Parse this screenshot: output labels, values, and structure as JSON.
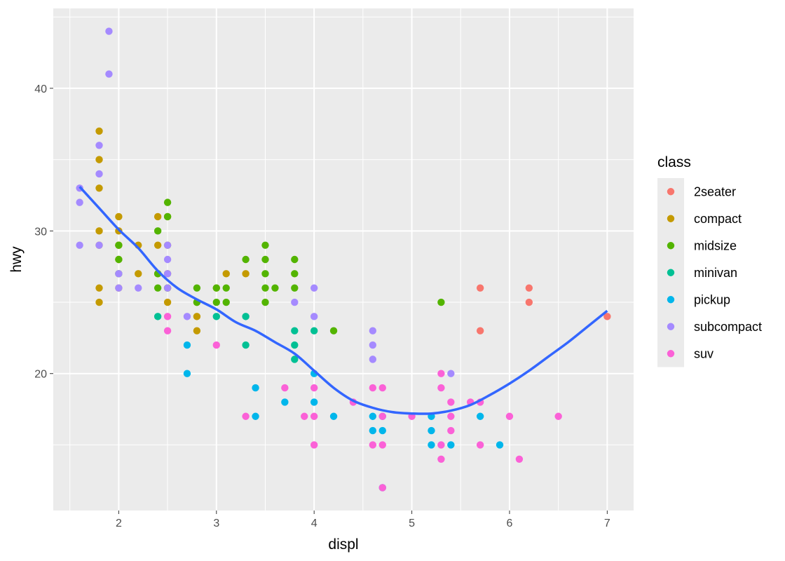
{
  "chart_data": {
    "type": "scatter",
    "xlabel": "displ",
    "ylabel": "hwy",
    "xlim": [
      1.33,
      7.27
    ],
    "ylim": [
      10.4,
      45.6
    ],
    "x_ticks": [
      2,
      3,
      4,
      5,
      6,
      7
    ],
    "y_ticks": [
      20,
      30,
      40
    ],
    "x_tick_labels": [
      "2",
      "3",
      "4",
      "5",
      "6",
      "7"
    ],
    "y_tick_labels": [
      "20",
      "30",
      "40"
    ],
    "grid": true,
    "legend": {
      "title": "class",
      "position": "right",
      "entries": [
        "2seater",
        "compact",
        "midsize",
        "minivan",
        "pickup",
        "subcompact",
        "suv"
      ]
    },
    "colors": {
      "2seater": "#F8766D",
      "compact": "#C49A00",
      "midsize": "#53B400",
      "minivan": "#00C094",
      "pickup": "#00B6EB",
      "subcompact": "#A58AFF",
      "suv": "#FB61D7",
      "smooth": "#3366FF",
      "panel": "#EBEBEB",
      "grid": "#FFFFFF"
    },
    "series": [
      {
        "name": "2seater",
        "points": [
          [
            5.7,
            26
          ],
          [
            5.7,
            23
          ],
          [
            6.2,
            26
          ],
          [
            6.2,
            25
          ],
          [
            7.0,
            24
          ]
        ]
      },
      {
        "name": "compact",
        "points": [
          [
            1.8,
            37
          ],
          [
            1.8,
            35
          ],
          [
            1.8,
            33
          ],
          [
            1.8,
            30
          ],
          [
            1.8,
            29
          ],
          [
            1.8,
            26
          ],
          [
            1.8,
            25
          ],
          [
            2.0,
            31
          ],
          [
            2.0,
            30
          ],
          [
            2.0,
            29
          ],
          [
            2.0,
            26
          ],
          [
            2.2,
            29
          ],
          [
            2.2,
            27
          ],
          [
            2.4,
            31
          ],
          [
            2.4,
            29
          ],
          [
            2.4,
            27
          ],
          [
            2.5,
            31
          ],
          [
            2.5,
            29
          ],
          [
            2.5,
            27
          ],
          [
            2.5,
            26
          ],
          [
            2.5,
            25
          ],
          [
            2.8,
            25
          ],
          [
            2.8,
            24
          ],
          [
            2.8,
            23
          ],
          [
            3.0,
            26
          ],
          [
            3.1,
            27
          ],
          [
            3.3,
            27
          ],
          [
            2.0,
            29
          ],
          [
            2.0,
            28
          ]
        ]
      },
      {
        "name": "midsize",
        "points": [
          [
            2.0,
            29
          ],
          [
            2.0,
            28
          ],
          [
            2.0,
            27
          ],
          [
            2.4,
            30
          ],
          [
            2.4,
            27
          ],
          [
            2.4,
            26
          ],
          [
            2.5,
            32
          ],
          [
            2.5,
            31
          ],
          [
            2.5,
            26
          ],
          [
            2.8,
            26
          ],
          [
            2.8,
            25
          ],
          [
            3.0,
            26
          ],
          [
            3.0,
            25
          ],
          [
            3.1,
            26
          ],
          [
            3.1,
            25
          ],
          [
            3.3,
            28
          ],
          [
            3.5,
            29
          ],
          [
            3.5,
            28
          ],
          [
            3.5,
            27
          ],
          [
            3.5,
            26
          ],
          [
            3.5,
            25
          ],
          [
            3.6,
            26
          ],
          [
            3.8,
            28
          ],
          [
            3.8,
            27
          ],
          [
            3.8,
            26
          ],
          [
            4.2,
            23
          ],
          [
            5.3,
            25
          ]
        ]
      },
      {
        "name": "minivan",
        "points": [
          [
            2.4,
            24
          ],
          [
            3.0,
            24
          ],
          [
            3.3,
            24
          ],
          [
            3.3,
            22
          ],
          [
            3.8,
            23
          ],
          [
            3.8,
            22
          ],
          [
            3.8,
            21
          ],
          [
            4.0,
            23
          ]
        ]
      },
      {
        "name": "pickup",
        "points": [
          [
            2.7,
            22
          ],
          [
            2.7,
            20
          ],
          [
            3.4,
            19
          ],
          [
            3.4,
            17
          ],
          [
            3.7,
            18
          ],
          [
            4.0,
            20
          ],
          [
            4.0,
            18
          ],
          [
            4.2,
            17
          ],
          [
            4.6,
            17
          ],
          [
            4.6,
            16
          ],
          [
            4.7,
            17
          ],
          [
            4.7,
            16
          ],
          [
            4.7,
            12
          ],
          [
            5.2,
            17
          ],
          [
            5.2,
            16
          ],
          [
            5.2,
            15
          ],
          [
            5.4,
            15
          ],
          [
            5.7,
            17
          ],
          [
            5.9,
            15
          ]
        ]
      },
      {
        "name": "subcompact",
        "points": [
          [
            1.6,
            33
          ],
          [
            1.6,
            32
          ],
          [
            1.6,
            29
          ],
          [
            1.8,
            36
          ],
          [
            1.8,
            34
          ],
          [
            1.8,
            29
          ],
          [
            1.9,
            44
          ],
          [
            1.9,
            41
          ],
          [
            2.0,
            27
          ],
          [
            2.0,
            26
          ],
          [
            2.2,
            26
          ],
          [
            2.5,
            29
          ],
          [
            2.5,
            28
          ],
          [
            2.5,
            27
          ],
          [
            2.5,
            26
          ],
          [
            2.7,
            24
          ],
          [
            3.8,
            25
          ],
          [
            4.0,
            26
          ],
          [
            4.0,
            24
          ],
          [
            4.6,
            23
          ],
          [
            4.6,
            22
          ],
          [
            4.6,
            21
          ],
          [
            5.4,
            20
          ]
        ]
      },
      {
        "name": "suv",
        "points": [
          [
            2.5,
            24
          ],
          [
            2.5,
            23
          ],
          [
            3.0,
            22
          ],
          [
            3.3,
            17
          ],
          [
            3.7,
            19
          ],
          [
            3.9,
            17
          ],
          [
            4.0,
            19
          ],
          [
            4.0,
            17
          ],
          [
            4.0,
            15
          ],
          [
            4.4,
            18
          ],
          [
            4.6,
            19
          ],
          [
            4.6,
            15
          ],
          [
            4.7,
            19
          ],
          [
            4.7,
            17
          ],
          [
            4.7,
            15
          ],
          [
            4.7,
            12
          ],
          [
            5.0,
            17
          ],
          [
            5.3,
            20
          ],
          [
            5.3,
            19
          ],
          [
            5.3,
            15
          ],
          [
            5.3,
            14
          ],
          [
            5.4,
            18
          ],
          [
            5.4,
            17
          ],
          [
            5.4,
            16
          ],
          [
            5.6,
            18
          ],
          [
            5.7,
            18
          ],
          [
            5.7,
            15
          ],
          [
            6.0,
            17
          ],
          [
            6.1,
            14
          ],
          [
            6.5,
            17
          ]
        ]
      }
    ],
    "smooth_line": {
      "x": [
        1.6,
        1.8,
        2.0,
        2.2,
        2.4,
        2.6,
        2.8,
        3.0,
        3.2,
        3.4,
        3.6,
        3.8,
        4.0,
        4.2,
        4.4,
        4.6,
        4.8,
        5.0,
        5.2,
        5.4,
        5.6,
        5.8,
        6.0,
        6.2,
        6.4,
        6.6,
        6.8,
        7.0
      ],
      "y": [
        33.1,
        31.6,
        30.1,
        28.8,
        27.2,
        26.0,
        25.2,
        24.5,
        23.6,
        23.0,
        22.2,
        21.4,
        20.2,
        19.0,
        18.1,
        17.6,
        17.3,
        17.2,
        17.2,
        17.4,
        17.8,
        18.5,
        19.3,
        20.2,
        21.2,
        22.2,
        23.3,
        24.4
      ]
    }
  }
}
